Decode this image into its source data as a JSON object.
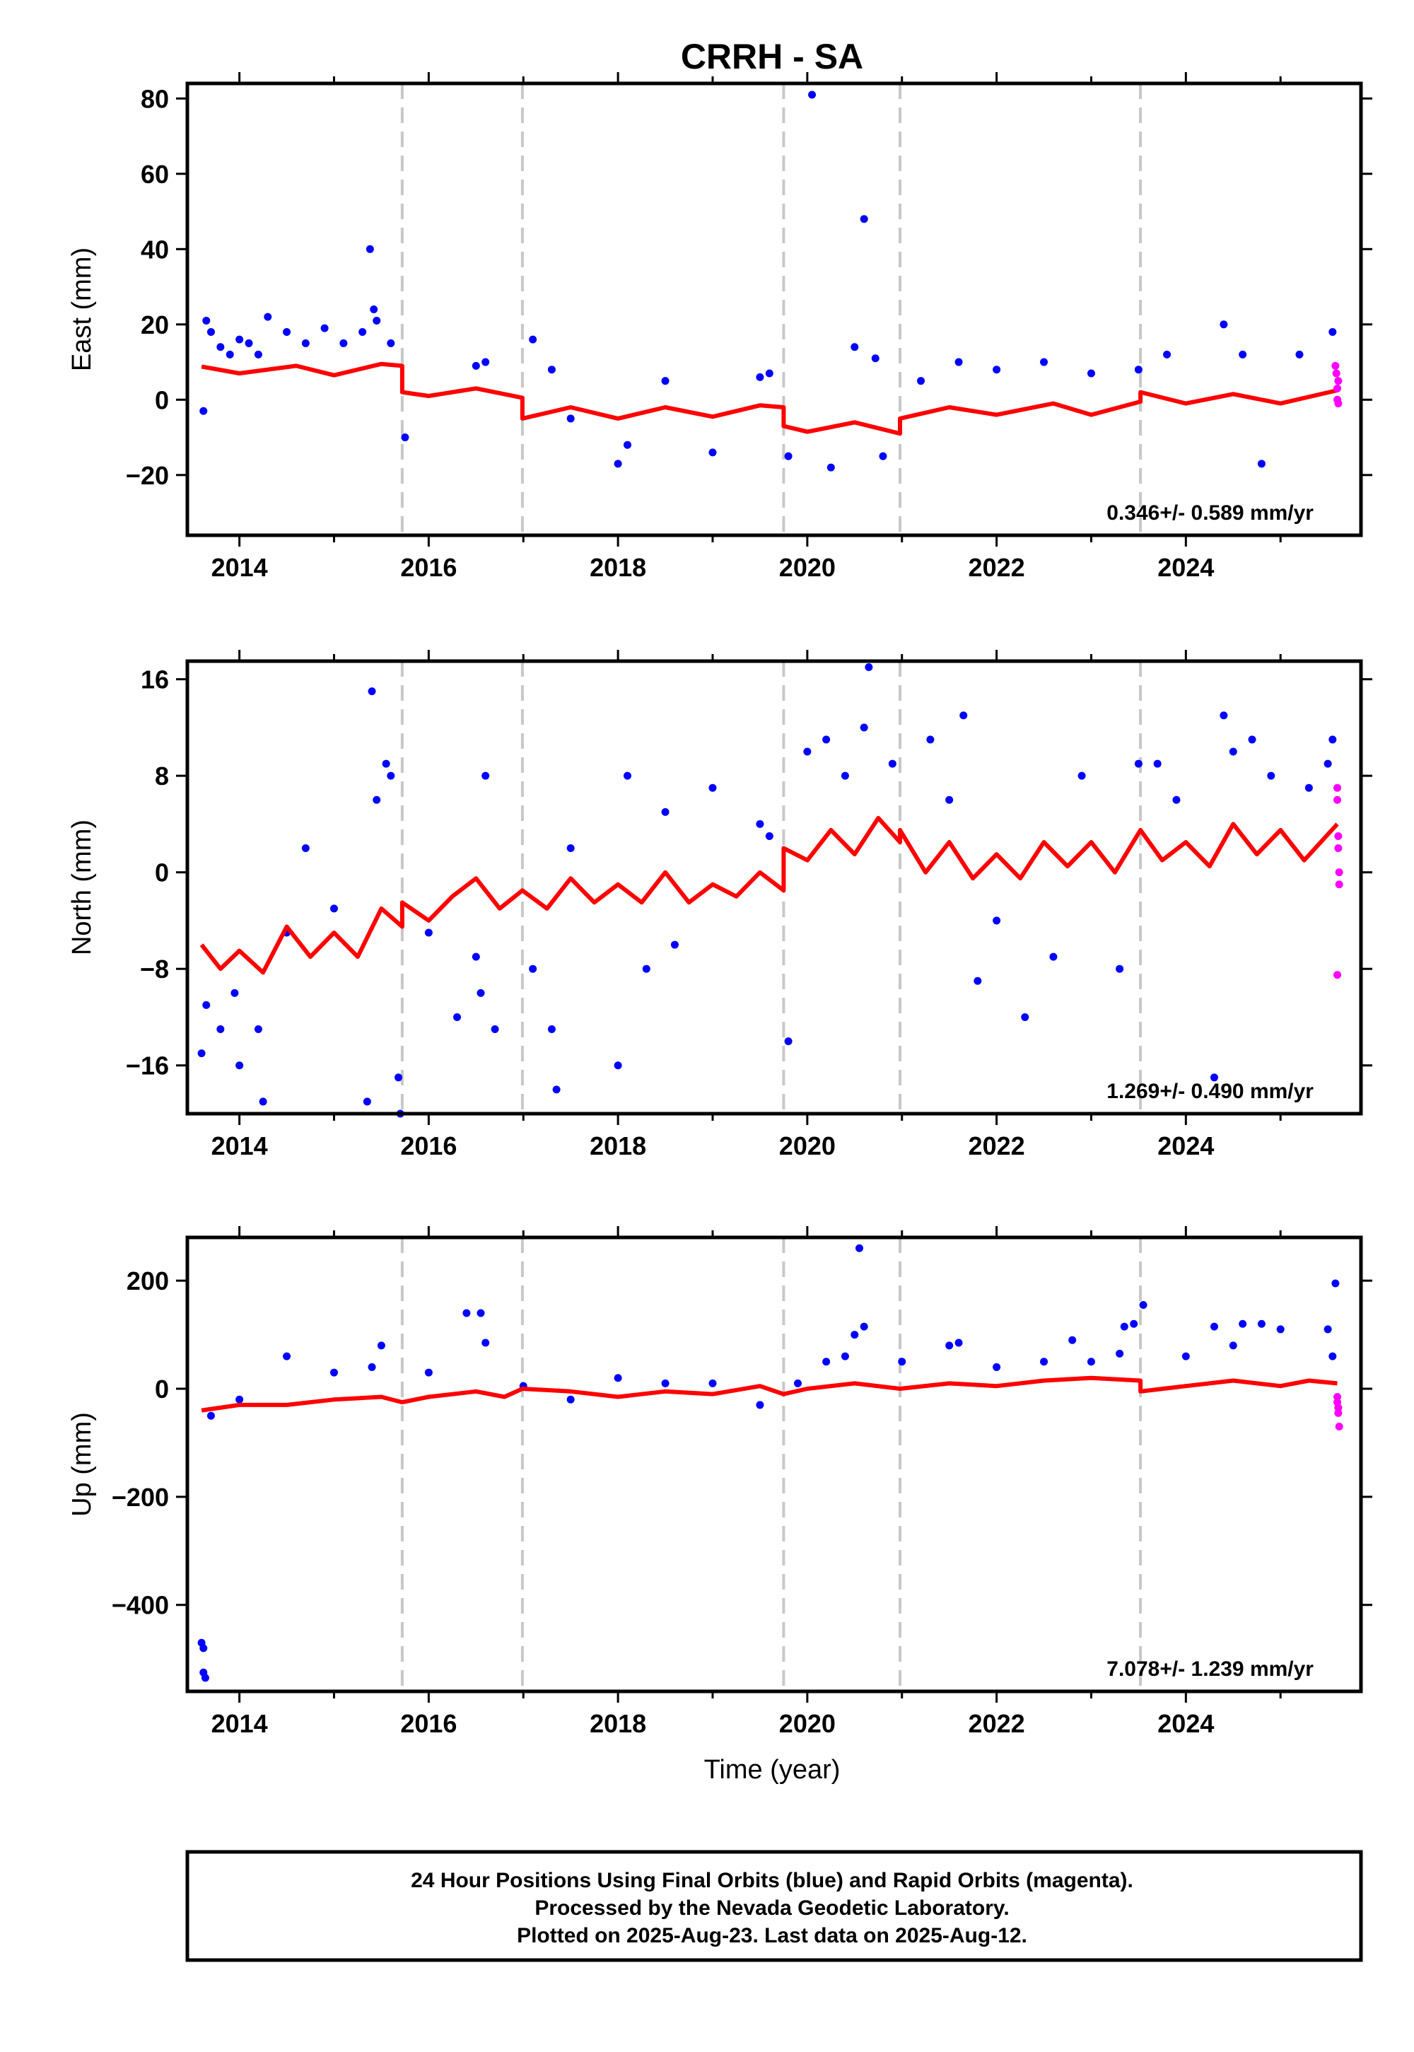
{
  "chart_data": {
    "type": "scatter",
    "title": "CRRH - SA",
    "xlabel": "Time (year)",
    "xlim": [
      2013.45,
      2025.85
    ],
    "x_ticks": [
      2014,
      2016,
      2018,
      2020,
      2022,
      2024
    ],
    "x_tick_labels": [
      "2014",
      "2016",
      "2018",
      "2020",
      "2022",
      "2024"
    ],
    "grid": false,
    "legend": "none",
    "colors": {
      "final": "#0000ff",
      "rapid": "#ff00ff",
      "model": "#ff0000",
      "offsets": "#c8c8c8"
    },
    "step_epochs": [
      2015.72,
      2016.99,
      2019.75,
      2020.98,
      2023.52
    ],
    "panels": [
      {
        "ylabel": "East (mm)",
        "ylim": [
          -36,
          84
        ],
        "yticks": [
          -20,
          0,
          20,
          40,
          60,
          80
        ],
        "ytick_labels": [
          "−20",
          "0",
          "20",
          "40",
          "60",
          "80"
        ],
        "rate_label": "0.346+/- 0.589 mm/yr",
        "model": [
          [
            2013.6,
            8.8
          ],
          [
            2014.0,
            7.0
          ],
          [
            2014.6,
            9.0
          ],
          [
            2015.0,
            6.5
          ],
          [
            2015.5,
            9.5
          ],
          [
            2015.72,
            9.0
          ],
          [
            2015.72,
            2.0
          ],
          [
            2016.0,
            1.0
          ],
          [
            2016.5,
            3.0
          ],
          [
            2016.99,
            0.5
          ],
          [
            2016.99,
            -5.0
          ],
          [
            2017.5,
            -2.0
          ],
          [
            2018.0,
            -5.0
          ],
          [
            2018.5,
            -2.0
          ],
          [
            2019.0,
            -4.5
          ],
          [
            2019.5,
            -1.5
          ],
          [
            2019.75,
            -2.0
          ],
          [
            2019.75,
            -7.0
          ],
          [
            2020.0,
            -8.5
          ],
          [
            2020.5,
            -6.0
          ],
          [
            2020.98,
            -9.0
          ],
          [
            2020.98,
            -5.0
          ],
          [
            2021.5,
            -2.0
          ],
          [
            2022.0,
            -4.0
          ],
          [
            2022.6,
            -1.0
          ],
          [
            2023.0,
            -4.0
          ],
          [
            2023.52,
            -0.5
          ],
          [
            2023.52,
            2.0
          ],
          [
            2024.0,
            -1.0
          ],
          [
            2024.5,
            1.5
          ],
          [
            2025.0,
            -1.0
          ],
          [
            2025.6,
            2.5
          ]
        ],
        "final": [
          [
            2013.62,
            -3
          ],
          [
            2013.65,
            21
          ],
          [
            2013.7,
            18
          ],
          [
            2013.8,
            14
          ],
          [
            2013.9,
            12
          ],
          [
            2014.0,
            16
          ],
          [
            2014.1,
            15
          ],
          [
            2014.2,
            12
          ],
          [
            2014.3,
            22
          ],
          [
            2014.5,
            18
          ],
          [
            2014.7,
            15
          ],
          [
            2014.9,
            19
          ],
          [
            2015.1,
            15
          ],
          [
            2015.3,
            18
          ],
          [
            2015.38,
            40
          ],
          [
            2015.42,
            24
          ],
          [
            2015.45,
            21
          ],
          [
            2015.6,
            15
          ],
          [
            2015.75,
            -10
          ],
          [
            2016.5,
            9
          ],
          [
            2016.6,
            10
          ],
          [
            2017.1,
            16
          ],
          [
            2017.3,
            8
          ],
          [
            2017.5,
            -5
          ],
          [
            2018.0,
            -17
          ],
          [
            2018.1,
            -12
          ],
          [
            2018.5,
            5
          ],
          [
            2019.0,
            -14
          ],
          [
            2019.5,
            6
          ],
          [
            2019.6,
            7
          ],
          [
            2019.8,
            -15
          ],
          [
            2020.05,
            81
          ],
          [
            2020.25,
            -18
          ],
          [
            2020.5,
            14
          ],
          [
            2020.6,
            48
          ],
          [
            2020.72,
            11
          ],
          [
            2020.8,
            -15
          ],
          [
            2021.2,
            5
          ],
          [
            2021.6,
            10
          ],
          [
            2022.0,
            8
          ],
          [
            2022.5,
            10
          ],
          [
            2023.0,
            7
          ],
          [
            2023.5,
            8
          ],
          [
            2023.8,
            12
          ],
          [
            2024.4,
            20
          ],
          [
            2024.6,
            12
          ],
          [
            2024.8,
            -17
          ],
          [
            2025.2,
            12
          ],
          [
            2025.55,
            18
          ]
        ],
        "rapid": [
          [
            2025.58,
            9
          ],
          [
            2025.59,
            7
          ],
          [
            2025.6,
            3
          ],
          [
            2025.6,
            0
          ],
          [
            2025.61,
            -1
          ],
          [
            2025.61,
            5
          ]
        ]
      },
      {
        "ylabel": "North (mm)",
        "ylim": [
          -20,
          17.5
        ],
        "yticks": [
          -16,
          -8,
          0,
          8,
          16
        ],
        "ytick_labels": [
          "−16",
          "−8",
          "0",
          "8",
          "16"
        ],
        "rate_label": "1.269+/- 0.490 mm/yr",
        "model": [
          [
            2013.6,
            -6.0
          ],
          [
            2013.8,
            -8.0
          ],
          [
            2014.0,
            -6.5
          ],
          [
            2014.25,
            -8.3
          ],
          [
            2014.5,
            -4.5
          ],
          [
            2014.75,
            -7.0
          ],
          [
            2015.0,
            -5.0
          ],
          [
            2015.25,
            -7.0
          ],
          [
            2015.5,
            -3.0
          ],
          [
            2015.72,
            -4.5
          ],
          [
            2015.72,
            -2.5
          ],
          [
            2016.0,
            -4.0
          ],
          [
            2016.25,
            -2.0
          ],
          [
            2016.5,
            -0.5
          ],
          [
            2016.75,
            -3.0
          ],
          [
            2016.99,
            -1.5
          ],
          [
            2017.25,
            -3.0
          ],
          [
            2017.5,
            -0.5
          ],
          [
            2017.75,
            -2.5
          ],
          [
            2018.0,
            -1.0
          ],
          [
            2018.25,
            -2.5
          ],
          [
            2018.5,
            0.0
          ],
          [
            2018.75,
            -2.5
          ],
          [
            2019.0,
            -1.0
          ],
          [
            2019.25,
            -2.0
          ],
          [
            2019.5,
            0.0
          ],
          [
            2019.75,
            -1.5
          ],
          [
            2019.75,
            2.0
          ],
          [
            2020.0,
            1.0
          ],
          [
            2020.25,
            3.5
          ],
          [
            2020.5,
            1.5
          ],
          [
            2020.75,
            4.5
          ],
          [
            2020.98,
            2.5
          ],
          [
            2020.98,
            3.5
          ],
          [
            2021.25,
            0.0
          ],
          [
            2021.5,
            2.5
          ],
          [
            2021.75,
            -0.5
          ],
          [
            2022.0,
            1.5
          ],
          [
            2022.25,
            -0.5
          ],
          [
            2022.5,
            2.5
          ],
          [
            2022.75,
            0.5
          ],
          [
            2023.0,
            2.5
          ],
          [
            2023.25,
            0.0
          ],
          [
            2023.52,
            3.5
          ],
          [
            2023.75,
            1.0
          ],
          [
            2024.0,
            2.5
          ],
          [
            2024.25,
            0.5
          ],
          [
            2024.5,
            4.0
          ],
          [
            2024.75,
            1.5
          ],
          [
            2025.0,
            3.5
          ],
          [
            2025.25,
            1.0
          ],
          [
            2025.6,
            4.0
          ]
        ],
        "final": [
          [
            2013.6,
            -15
          ],
          [
            2013.65,
            -11
          ],
          [
            2013.8,
            -13
          ],
          [
            2013.95,
            -10
          ],
          [
            2014.0,
            -16
          ],
          [
            2014.2,
            -13
          ],
          [
            2014.25,
            -19
          ],
          [
            2014.5,
            -5
          ],
          [
            2014.7,
            2
          ],
          [
            2015.0,
            -3
          ],
          [
            2015.35,
            -19
          ],
          [
            2015.4,
            15
          ],
          [
            2015.45,
            6
          ],
          [
            2015.55,
            9
          ],
          [
            2015.6,
            8
          ],
          [
            2015.68,
            -17
          ],
          [
            2015.7,
            -20
          ],
          [
            2016.0,
            -5
          ],
          [
            2016.3,
            -12
          ],
          [
            2016.5,
            -7
          ],
          [
            2016.55,
            -10
          ],
          [
            2016.6,
            8
          ],
          [
            2016.7,
            -13
          ],
          [
            2017.1,
            -8
          ],
          [
            2017.3,
            -13
          ],
          [
            2017.35,
            -18
          ],
          [
            2017.5,
            2
          ],
          [
            2018.0,
            -16
          ],
          [
            2018.1,
            8
          ],
          [
            2018.3,
            -8
          ],
          [
            2018.5,
            5
          ],
          [
            2018.6,
            -6
          ],
          [
            2019.0,
            7
          ],
          [
            2019.5,
            4
          ],
          [
            2019.6,
            3
          ],
          [
            2019.8,
            -14
          ],
          [
            2020.0,
            10
          ],
          [
            2020.2,
            11
          ],
          [
            2020.4,
            8
          ],
          [
            2020.6,
            12
          ],
          [
            2020.65,
            17
          ],
          [
            2020.9,
            9
          ],
          [
            2021.3,
            11
          ],
          [
            2021.5,
            6
          ],
          [
            2021.65,
            13
          ],
          [
            2021.8,
            -9
          ],
          [
            2022.0,
            -4
          ],
          [
            2022.3,
            -12
          ],
          [
            2022.6,
            -7
          ],
          [
            2022.9,
            8
          ],
          [
            2023.3,
            -8
          ],
          [
            2023.5,
            9
          ],
          [
            2023.7,
            9
          ],
          [
            2023.9,
            6
          ],
          [
            2024.3,
            -17
          ],
          [
            2024.4,
            13
          ],
          [
            2024.5,
            10
          ],
          [
            2024.7,
            11
          ],
          [
            2024.9,
            8
          ],
          [
            2025.3,
            7
          ],
          [
            2025.5,
            9
          ],
          [
            2025.55,
            11
          ]
        ],
        "rapid": [
          [
            2025.6,
            7
          ],
          [
            2025.6,
            6
          ],
          [
            2025.61,
            3
          ],
          [
            2025.61,
            2
          ],
          [
            2025.62,
            0
          ],
          [
            2025.62,
            -1
          ],
          [
            2025.6,
            -8.5
          ]
        ]
      },
      {
        "ylabel": "Up (mm)",
        "ylim": [
          -560,
          280
        ],
        "yticks": [
          -400,
          -200,
          0,
          200
        ],
        "ytick_labels": [
          "−400",
          "−200",
          "0",
          "200"
        ],
        "rate_label": "7.078+/- 1.239 mm/yr",
        "model": [
          [
            2013.6,
            -40
          ],
          [
            2014.0,
            -30
          ],
          [
            2014.5,
            -30
          ],
          [
            2015.0,
            -20
          ],
          [
            2015.5,
            -15
          ],
          [
            2015.72,
            -25
          ],
          [
            2015.72,
            -25
          ],
          [
            2016.0,
            -15
          ],
          [
            2016.5,
            -5
          ],
          [
            2016.8,
            -15
          ],
          [
            2016.99,
            0
          ],
          [
            2017.5,
            -5
          ],
          [
            2018.0,
            -15
          ],
          [
            2018.5,
            -5
          ],
          [
            2019.0,
            -10
          ],
          [
            2019.5,
            5
          ],
          [
            2019.75,
            -10
          ],
          [
            2020.0,
            0
          ],
          [
            2020.5,
            10
          ],
          [
            2020.98,
            0
          ],
          [
            2021.5,
            10
          ],
          [
            2022.0,
            5
          ],
          [
            2022.5,
            15
          ],
          [
            2023.0,
            20
          ],
          [
            2023.52,
            15
          ],
          [
            2023.52,
            -5
          ],
          [
            2024.0,
            5
          ],
          [
            2024.5,
            15
          ],
          [
            2025.0,
            5
          ],
          [
            2025.3,
            15
          ],
          [
            2025.6,
            10
          ]
        ],
        "final": [
          [
            2013.6,
            -470
          ],
          [
            2013.62,
            -480
          ],
          [
            2013.62,
            -525
          ],
          [
            2013.64,
            -535
          ],
          [
            2013.7,
            -50
          ],
          [
            2014.0,
            -20
          ],
          [
            2014.5,
            60
          ],
          [
            2015.0,
            30
          ],
          [
            2015.5,
            80
          ],
          [
            2015.4,
            40
          ],
          [
            2016.0,
            30
          ],
          [
            2016.4,
            140
          ],
          [
            2016.55,
            140
          ],
          [
            2016.6,
            85
          ],
          [
            2017.0,
            5
          ],
          [
            2017.5,
            -20
          ],
          [
            2018.0,
            20
          ],
          [
            2018.5,
            10
          ],
          [
            2019.0,
            10
          ],
          [
            2019.5,
            -30
          ],
          [
            2019.9,
            10
          ],
          [
            2020.2,
            50
          ],
          [
            2020.4,
            60
          ],
          [
            2020.5,
            100
          ],
          [
            2020.55,
            260
          ],
          [
            2020.6,
            115
          ],
          [
            2021.0,
            50
          ],
          [
            2021.5,
            80
          ],
          [
            2021.6,
            85
          ],
          [
            2022.0,
            40
          ],
          [
            2022.5,
            50
          ],
          [
            2022.8,
            90
          ],
          [
            2023.0,
            50
          ],
          [
            2023.3,
            65
          ],
          [
            2023.35,
            115
          ],
          [
            2023.45,
            120
          ],
          [
            2023.55,
            155
          ],
          [
            2024.0,
            60
          ],
          [
            2024.3,
            115
          ],
          [
            2024.5,
            80
          ],
          [
            2024.6,
            120
          ],
          [
            2024.8,
            120
          ],
          [
            2025.0,
            110
          ],
          [
            2025.5,
            110
          ],
          [
            2025.55,
            60
          ],
          [
            2025.58,
            195
          ]
        ],
        "rapid": [
          [
            2025.6,
            -15
          ],
          [
            2025.6,
            -25
          ],
          [
            2025.61,
            -35
          ],
          [
            2025.61,
            -45
          ],
          [
            2025.62,
            -70
          ]
        ]
      }
    ]
  },
  "footer": {
    "line1": "24 Hour Positions Using Final Orbits (blue) and Rapid Orbits (magenta).",
    "line2": "Processed by the Nevada Geodetic Laboratory.",
    "line3": "Plotted on 2025-Aug-23. Last data on 2025-Aug-12."
  }
}
